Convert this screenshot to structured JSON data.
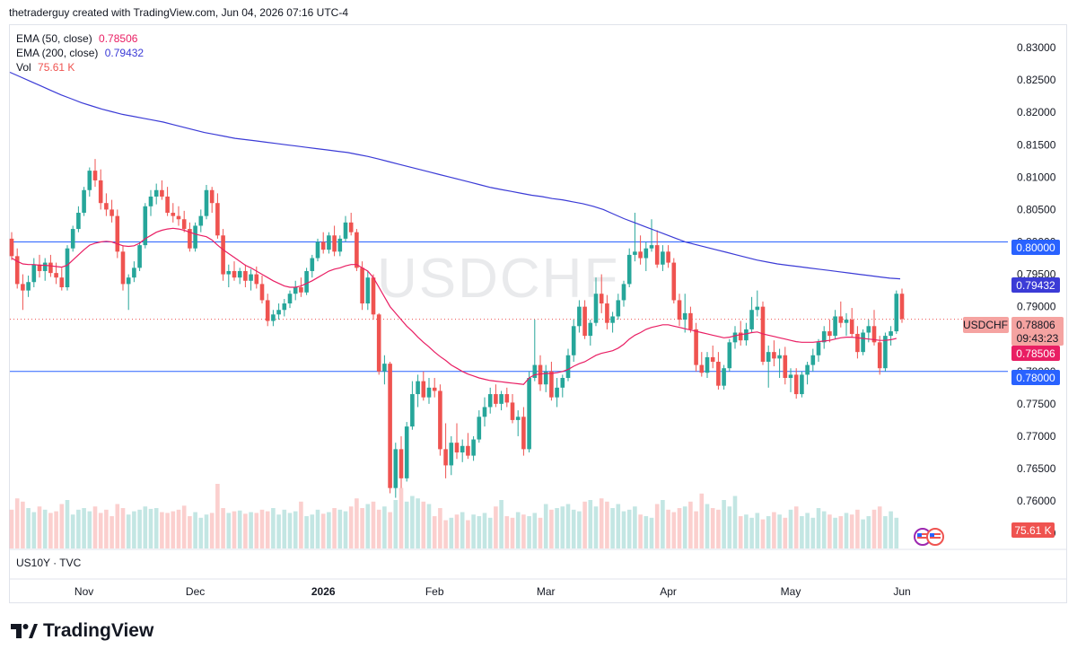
{
  "header": {
    "caption": "thetraderguy created with TradingView.com, Jun 04, 2026 07:16 UTC-4"
  },
  "legend": {
    "ema50": {
      "label": "EMA (50, close)",
      "value": "0.78506",
      "color": "#e91e63"
    },
    "ema200": {
      "label": "EMA (200, close)",
      "value": "0.79432",
      "color": "#3b3bd6"
    },
    "vol": {
      "label": "Vol",
      "value": "75.61 K",
      "color": "#ef5350"
    }
  },
  "symbol": "USDCHF",
  "secondary_pane": "US10Y · TVC",
  "brand": "TradingView",
  "colors": {
    "up": "#26a69a",
    "down": "#ef5350",
    "ema50": "#e91e63",
    "ema200": "#3b3bd6",
    "hline": "#2962ff"
  },
  "tags": {
    "level_high": "0.80000",
    "ema200": "0.79432",
    "symbol": "USDCHF",
    "price": "0.78806",
    "countdown": "09:43:23",
    "ema50": "0.78506",
    "level_low": "0.78000",
    "volume": "75.61 K"
  },
  "chart_data": {
    "type": "candlestick",
    "symbol": "USDCHF",
    "ylim": [
      0.7535,
      0.8325
    ],
    "y_ticks": [
      "0.83000",
      "0.82500",
      "0.82000",
      "0.81500",
      "0.81000",
      "0.80500",
      "0.80000",
      "0.79500",
      "0.79000",
      "0.78500",
      "0.78000",
      "0.77500",
      "0.77000",
      "0.76500",
      "0.76000",
      "0.75500"
    ],
    "x_ticks": [
      "Nov",
      "Dec",
      "2026",
      "Feb",
      "Mar",
      "Apr",
      "May",
      "Jun"
    ],
    "horizontal_levels": [
      0.8,
      0.78
    ],
    "last_price": 0.78806,
    "ema50_last": 0.78506,
    "ema200_last": 0.79432,
    "volume_last": "75.61 K",
    "candles": [
      [
        0.8005,
        0.8015,
        0.7972,
        0.7978
      ],
      [
        0.7978,
        0.799,
        0.7928,
        0.7935
      ],
      [
        0.7935,
        0.795,
        0.7895,
        0.7925
      ],
      [
        0.7925,
        0.7948,
        0.7915,
        0.7938
      ],
      [
        0.7938,
        0.7975,
        0.793,
        0.7965
      ],
      [
        0.7965,
        0.798,
        0.7945,
        0.7955
      ],
      [
        0.7955,
        0.7975,
        0.794,
        0.7968
      ],
      [
        0.7968,
        0.798,
        0.7946,
        0.7952
      ],
      [
        0.7952,
        0.7968,
        0.7935,
        0.7945
      ],
      [
        0.7945,
        0.796,
        0.7925,
        0.793
      ],
      [
        0.793,
        0.7995,
        0.7925,
        0.799
      ],
      [
        0.799,
        0.8025,
        0.7985,
        0.802
      ],
      [
        0.802,
        0.8055,
        0.8015,
        0.8045
      ],
      [
        0.8045,
        0.8085,
        0.804,
        0.808
      ],
      [
        0.808,
        0.8115,
        0.807,
        0.811
      ],
      [
        0.811,
        0.8128,
        0.8085,
        0.8095
      ],
      [
        0.8095,
        0.8112,
        0.805,
        0.806
      ],
      [
        0.806,
        0.8075,
        0.804,
        0.805
      ],
      [
        0.805,
        0.8065,
        0.803,
        0.804
      ],
      [
        0.804,
        0.805,
        0.7975,
        0.7985
      ],
      [
        0.7985,
        0.7995,
        0.7925,
        0.7935
      ],
      [
        0.7935,
        0.795,
        0.7895,
        0.7945
      ],
      [
        0.7945,
        0.797,
        0.7938,
        0.796
      ],
      [
        0.796,
        0.8,
        0.7955,
        0.7995
      ],
      [
        0.7995,
        0.806,
        0.799,
        0.8055
      ],
      [
        0.8055,
        0.808,
        0.804,
        0.807
      ],
      [
        0.807,
        0.809,
        0.8058,
        0.808
      ],
      [
        0.808,
        0.8095,
        0.8065,
        0.807
      ],
      [
        0.807,
        0.8085,
        0.804,
        0.8045
      ],
      [
        0.8045,
        0.806,
        0.803,
        0.804
      ],
      [
        0.804,
        0.8055,
        0.8025,
        0.8035
      ],
      [
        0.8035,
        0.8048,
        0.8015,
        0.802
      ],
      [
        0.802,
        0.803,
        0.7985,
        0.799
      ],
      [
        0.799,
        0.803,
        0.7985,
        0.8025
      ],
      [
        0.8025,
        0.805,
        0.8015,
        0.804
      ],
      [
        0.804,
        0.8088,
        0.8035,
        0.808
      ],
      [
        0.808,
        0.8085,
        0.8045,
        0.806
      ],
      [
        0.806,
        0.8075,
        0.8005,
        0.801
      ],
      [
        0.801,
        0.802,
        0.794,
        0.795
      ],
      [
        0.795,
        0.7965,
        0.793,
        0.7955
      ],
      [
        0.7955,
        0.797,
        0.794,
        0.7945
      ],
      [
        0.7945,
        0.796,
        0.7935,
        0.7955
      ],
      [
        0.7955,
        0.7965,
        0.793,
        0.794
      ],
      [
        0.794,
        0.7958,
        0.7925,
        0.795
      ],
      [
        0.795,
        0.7962,
        0.7928,
        0.7935
      ],
      [
        0.7935,
        0.7948,
        0.7905,
        0.791
      ],
      [
        0.791,
        0.792,
        0.787,
        0.7878
      ],
      [
        0.7878,
        0.7895,
        0.787,
        0.7888
      ],
      [
        0.7888,
        0.7905,
        0.788,
        0.7895
      ],
      [
        0.7895,
        0.7912,
        0.7885,
        0.7905
      ],
      [
        0.7905,
        0.7925,
        0.7898,
        0.792
      ],
      [
        0.792,
        0.794,
        0.791,
        0.793
      ],
      [
        0.793,
        0.7945,
        0.7915,
        0.7922
      ],
      [
        0.7922,
        0.796,
        0.7918,
        0.7955
      ],
      [
        0.7955,
        0.798,
        0.7945,
        0.7975
      ],
      [
        0.7975,
        0.8005,
        0.797,
        0.8
      ],
      [
        0.8,
        0.8015,
        0.7982,
        0.7988
      ],
      [
        0.7988,
        0.8015,
        0.7982,
        0.801
      ],
      [
        0.801,
        0.8025,
        0.7978,
        0.7985
      ],
      [
        0.7985,
        0.801,
        0.7978,
        0.8005
      ],
      [
        0.8005,
        0.804,
        0.8,
        0.803
      ],
      [
        0.803,
        0.8045,
        0.801,
        0.8015
      ],
      [
        0.8015,
        0.802,
        0.7955,
        0.796
      ],
      [
        0.796,
        0.797,
        0.7895,
        0.7905
      ],
      [
        0.7905,
        0.7955,
        0.7895,
        0.7945
      ],
      [
        0.7945,
        0.795,
        0.788,
        0.7888
      ],
      [
        0.7888,
        0.789,
        0.7795,
        0.78
      ],
      [
        0.78,
        0.7825,
        0.778,
        0.7812
      ],
      [
        0.7812,
        0.7815,
        0.7612,
        0.762
      ],
      [
        0.762,
        0.769,
        0.7605,
        0.768
      ],
      [
        0.768,
        0.77,
        0.762,
        0.7635
      ],
      [
        0.7635,
        0.7722,
        0.763,
        0.7715
      ],
      [
        0.7715,
        0.7785,
        0.771,
        0.7765
      ],
      [
        0.7765,
        0.7795,
        0.7745,
        0.7785
      ],
      [
        0.7785,
        0.78,
        0.7755,
        0.776
      ],
      [
        0.776,
        0.779,
        0.775,
        0.7775
      ],
      [
        0.7775,
        0.779,
        0.776,
        0.777
      ],
      [
        0.777,
        0.778,
        0.767,
        0.768
      ],
      [
        0.768,
        0.772,
        0.7635,
        0.7655
      ],
      [
        0.7655,
        0.77,
        0.764,
        0.769
      ],
      [
        0.769,
        0.772,
        0.7665,
        0.7675
      ],
      [
        0.7675,
        0.7695,
        0.766,
        0.7685
      ],
      [
        0.7685,
        0.7705,
        0.7665,
        0.767
      ],
      [
        0.767,
        0.77,
        0.7662,
        0.7695
      ],
      [
        0.7695,
        0.774,
        0.769,
        0.773
      ],
      [
        0.773,
        0.776,
        0.7715,
        0.7745
      ],
      [
        0.7745,
        0.7775,
        0.7735,
        0.7765
      ],
      [
        0.7765,
        0.778,
        0.7745,
        0.775
      ],
      [
        0.775,
        0.777,
        0.774,
        0.7765
      ],
      [
        0.7765,
        0.7775,
        0.7745,
        0.7752
      ],
      [
        0.7752,
        0.7765,
        0.772,
        0.7725
      ],
      [
        0.7725,
        0.774,
        0.77,
        0.773
      ],
      [
        0.773,
        0.7745,
        0.767,
        0.768
      ],
      [
        0.768,
        0.78,
        0.7675,
        0.779
      ],
      [
        0.779,
        0.788,
        0.7785,
        0.781
      ],
      [
        0.781,
        0.7825,
        0.777,
        0.778
      ],
      [
        0.778,
        0.781,
        0.7768,
        0.78
      ],
      [
        0.78,
        0.7815,
        0.7755,
        0.776
      ],
      [
        0.776,
        0.779,
        0.7745,
        0.7775
      ],
      [
        0.7775,
        0.7795,
        0.776,
        0.779
      ],
      [
        0.779,
        0.7835,
        0.7785,
        0.7825
      ],
      [
        0.7825,
        0.788,
        0.7815,
        0.787
      ],
      [
        0.787,
        0.791,
        0.786,
        0.79
      ],
      [
        0.79,
        0.791,
        0.785,
        0.7855
      ],
      [
        0.7855,
        0.788,
        0.784,
        0.7875
      ],
      [
        0.7875,
        0.7945,
        0.787,
        0.792
      ],
      [
        0.792,
        0.795,
        0.789,
        0.7905
      ],
      [
        0.7905,
        0.7918,
        0.7865,
        0.7875
      ],
      [
        0.7875,
        0.7892,
        0.786,
        0.7885
      ],
      [
        0.7885,
        0.792,
        0.788,
        0.791
      ],
      [
        0.791,
        0.794,
        0.79,
        0.7935
      ],
      [
        0.7935,
        0.799,
        0.793,
        0.798
      ],
      [
        0.798,
        0.8045,
        0.797,
        0.7985
      ],
      [
        0.7985,
        0.801,
        0.7965,
        0.7975
      ],
      [
        0.7975,
        0.8,
        0.7955,
        0.799
      ],
      [
        0.799,
        0.8035,
        0.7985,
        0.7995
      ],
      [
        0.7995,
        0.8018,
        0.796,
        0.7965
      ],
      [
        0.7965,
        0.7995,
        0.7955,
        0.7985
      ],
      [
        0.7985,
        0.7995,
        0.796,
        0.7968
      ],
      [
        0.7968,
        0.7975,
        0.7905,
        0.791
      ],
      [
        0.791,
        0.792,
        0.787,
        0.788
      ],
      [
        0.788,
        0.792,
        0.786,
        0.789
      ],
      [
        0.789,
        0.79,
        0.786,
        0.7865
      ],
      [
        0.7865,
        0.7875,
        0.78,
        0.781
      ],
      [
        0.781,
        0.783,
        0.7792,
        0.7798
      ],
      [
        0.7798,
        0.783,
        0.779,
        0.7822
      ],
      [
        0.7822,
        0.784,
        0.7805,
        0.7815
      ],
      [
        0.7815,
        0.783,
        0.7772,
        0.7778
      ],
      [
        0.7778,
        0.781,
        0.7772,
        0.7805
      ],
      [
        0.7805,
        0.785,
        0.78,
        0.7845
      ],
      [
        0.7845,
        0.787,
        0.7835,
        0.786
      ],
      [
        0.786,
        0.7878,
        0.784,
        0.7848
      ],
      [
        0.7848,
        0.7875,
        0.784,
        0.7865
      ],
      [
        0.7865,
        0.7915,
        0.786,
        0.7895
      ],
      [
        0.7895,
        0.7925,
        0.7885,
        0.79
      ],
      [
        0.79,
        0.7908,
        0.781,
        0.7815
      ],
      [
        0.7815,
        0.784,
        0.7775,
        0.783
      ],
      [
        0.783,
        0.7848,
        0.7808,
        0.782
      ],
      [
        0.782,
        0.7835,
        0.779,
        0.7825
      ],
      [
        0.7825,
        0.7838,
        0.778,
        0.779
      ],
      [
        0.779,
        0.7805,
        0.7768,
        0.7795
      ],
      [
        0.7795,
        0.7805,
        0.7758,
        0.7765
      ],
      [
        0.7765,
        0.78,
        0.776,
        0.7795
      ],
      [
        0.7795,
        0.7815,
        0.778,
        0.781
      ],
      [
        0.781,
        0.7835,
        0.78,
        0.7825
      ],
      [
        0.7825,
        0.785,
        0.7815,
        0.7845
      ],
      [
        0.7845,
        0.787,
        0.7835,
        0.7862
      ],
      [
        0.7862,
        0.788,
        0.7845,
        0.7855
      ],
      [
        0.7855,
        0.7895,
        0.785,
        0.7885
      ],
      [
        0.7885,
        0.7908,
        0.7868,
        0.7875
      ],
      [
        0.7875,
        0.789,
        0.7855,
        0.788
      ],
      [
        0.788,
        0.7898,
        0.7852,
        0.7858
      ],
      [
        0.7858,
        0.787,
        0.782,
        0.783
      ],
      [
        0.783,
        0.7865,
        0.7825,
        0.786
      ],
      [
        0.786,
        0.788,
        0.7845,
        0.787
      ],
      [
        0.787,
        0.7895,
        0.784,
        0.7845
      ],
      [
        0.7845,
        0.7855,
        0.7795,
        0.7805
      ],
      [
        0.7805,
        0.786,
        0.78,
        0.7855
      ],
      [
        0.7855,
        0.787,
        0.784,
        0.7862
      ],
      [
        0.7862,
        0.7925,
        0.7858,
        0.792
      ],
      [
        0.792,
        0.7928,
        0.7875,
        0.7881
      ]
    ],
    "volumes": [
      0.48,
      0.62,
      0.58,
      0.5,
      0.45,
      0.52,
      0.48,
      0.44,
      0.46,
      0.55,
      0.6,
      0.42,
      0.48,
      0.5,
      0.46,
      0.52,
      0.44,
      0.48,
      0.4,
      0.55,
      0.5,
      0.42,
      0.46,
      0.48,
      0.52,
      0.49,
      0.5,
      0.45,
      0.44,
      0.46,
      0.48,
      0.53,
      0.4,
      0.45,
      0.38,
      0.42,
      0.44,
      0.8,
      0.5,
      0.44,
      0.46,
      0.47,
      0.43,
      0.45,
      0.44,
      0.48,
      0.46,
      0.5,
      0.42,
      0.48,
      0.44,
      0.46,
      0.58,
      0.4,
      0.42,
      0.48,
      0.43,
      0.45,
      0.5,
      0.48,
      0.46,
      0.52,
      0.62,
      0.5,
      0.55,
      0.58,
      0.48,
      0.52,
      0.45,
      0.6,
      0.75,
      0.58,
      0.65,
      0.62,
      0.58,
      0.55,
      0.4,
      0.5,
      0.35,
      0.38,
      0.42,
      0.45,
      0.35,
      0.42,
      0.4,
      0.44,
      0.38,
      0.52,
      0.6,
      0.4,
      0.38,
      0.45,
      0.42,
      0.4,
      0.44,
      0.38,
      0.55,
      0.48,
      0.5,
      0.52,
      0.55,
      0.48,
      0.46,
      0.58,
      0.6,
      0.52,
      0.62,
      0.58,
      0.5,
      0.55,
      0.46,
      0.48,
      0.52,
      0.42,
      0.4,
      0.38,
      0.55,
      0.6,
      0.48,
      0.45,
      0.5,
      0.52,
      0.58,
      0.46,
      0.68,
      0.55,
      0.5,
      0.48,
      0.6,
      0.52,
      0.65,
      0.4,
      0.42,
      0.38,
      0.44,
      0.36,
      0.4,
      0.45,
      0.42,
      0.38,
      0.48,
      0.52,
      0.4,
      0.44,
      0.38,
      0.5,
      0.46,
      0.42,
      0.38,
      0.4,
      0.44,
      0.42,
      0.48,
      0.36,
      0.4,
      0.48,
      0.52,
      0.4,
      0.46,
      0.38
    ],
    "ema50": [
      0.7975,
      0.797,
      0.7966,
      0.7965,
      0.7965,
      0.7964,
      0.7964,
      0.7963,
      0.7962,
      0.7961,
      0.7964,
      0.7972,
      0.798,
      0.7988,
      0.7995,
      0.7998,
      0.8,
      0.8001,
      0.8,
      0.7997,
      0.7994,
      0.7993,
      0.7994,
      0.7998,
      0.8005,
      0.801,
      0.8015,
      0.8018,
      0.802,
      0.8021,
      0.802,
      0.8018,
      0.8015,
      0.8012,
      0.801,
      0.8008,
      0.8003,
      0.7995,
      0.7988,
      0.7982,
      0.7976,
      0.797,
      0.7964,
      0.796,
      0.7955,
      0.795,
      0.7945,
      0.794,
      0.7936,
      0.7932,
      0.793,
      0.793,
      0.7932,
      0.7936,
      0.794,
      0.7945,
      0.795,
      0.7955,
      0.7958,
      0.796,
      0.7963,
      0.7965,
      0.7965,
      0.796,
      0.7955,
      0.7945,
      0.793,
      0.7915,
      0.79,
      0.789,
      0.788,
      0.787,
      0.7862,
      0.7853,
      0.7845,
      0.7838,
      0.783,
      0.7823,
      0.7817,
      0.781,
      0.7805,
      0.78,
      0.7796,
      0.7793,
      0.779,
      0.7788,
      0.7786,
      0.7785,
      0.7784,
      0.7783,
      0.7782,
      0.7781,
      0.778,
      0.779,
      0.7795,
      0.7796,
      0.7797,
      0.7797,
      0.7798,
      0.78,
      0.7803,
      0.7808,
      0.7812,
      0.7815,
      0.782,
      0.7825,
      0.7828,
      0.783,
      0.7832,
      0.7836,
      0.7842,
      0.785,
      0.7856,
      0.786,
      0.7865,
      0.7868,
      0.787,
      0.7872,
      0.7872,
      0.787,
      0.7868,
      0.7866,
      0.7864,
      0.7862,
      0.786,
      0.7858,
      0.7856,
      0.7854,
      0.7852,
      0.7853,
      0.7855,
      0.7857,
      0.7858,
      0.786,
      0.7861,
      0.7858,
      0.7856,
      0.7854,
      0.7852,
      0.785,
      0.7848,
      0.7846,
      0.7845,
      0.7845,
      0.7845,
      0.7846,
      0.7847,
      0.7848,
      0.785,
      0.7852,
      0.7853,
      0.7853,
      0.7852,
      0.7851,
      0.785,
      0.7849,
      0.7848,
      0.7848,
      0.7849,
      0.7851
    ],
    "ema200": [
      0.8262,
      0.8255,
      0.8248,
      0.8241,
      0.8234,
      0.8227,
      0.8221,
      0.8215,
      0.821,
      0.8205,
      0.8201,
      0.8197,
      0.8194,
      0.8191,
      0.8188,
      0.8185,
      0.8181,
      0.8177,
      0.8173,
      0.8169,
      0.8166,
      0.8163,
      0.816,
      0.8158,
      0.8156,
      0.8154,
      0.8152,
      0.815,
      0.8148,
      0.8146,
      0.8144,
      0.8142,
      0.814,
      0.8138,
      0.8135,
      0.8132,
      0.8128,
      0.8124,
      0.812,
      0.8116,
      0.8112,
      0.8108,
      0.8104,
      0.81,
      0.8096,
      0.8092,
      0.8088,
      0.8084,
      0.8081,
      0.8078,
      0.8075,
      0.8072,
      0.807,
      0.8067,
      0.8065,
      0.8062,
      0.8059,
      0.8055,
      0.805,
      0.8043,
      0.8036,
      0.803,
      0.8024,
      0.8018,
      0.8012,
      0.8006,
      0.8,
      0.7996,
      0.7992,
      0.7988,
      0.7984,
      0.798,
      0.7976,
      0.7972,
      0.7969,
      0.7966,
      0.7964,
      0.7962,
      0.796,
      0.7958,
      0.7956,
      0.7954,
      0.7952,
      0.795,
      0.7948,
      0.7946,
      0.7944,
      0.7943
    ]
  }
}
